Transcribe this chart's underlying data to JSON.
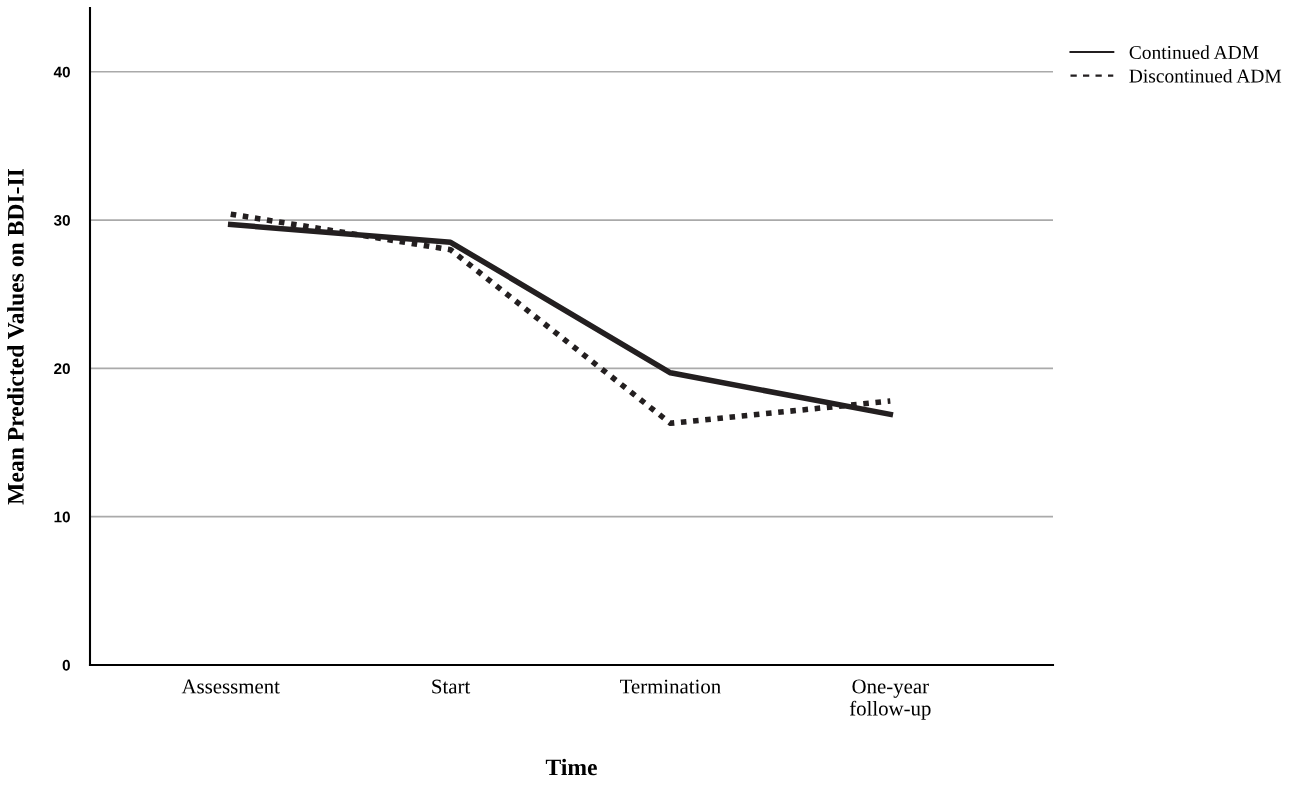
{
  "chart_data": {
    "type": "line",
    "xlabel": "Time",
    "ylabel": "Mean Predicted Values on BDI-II",
    "categories": [
      "Assessment",
      "Start",
      "Termination",
      "One-year\nfollow-up"
    ],
    "series": [
      {
        "name": "Continued ADM",
        "color": "#231f20",
        "line_style": "solid",
        "values": [
          29.7,
          28.5,
          19.7,
          16.9
        ]
      },
      {
        "name": "Discontinued ADM",
        "color": "#231f20",
        "line_style": "dotted",
        "values": [
          30.4,
          28.0,
          16.3,
          17.8
        ]
      }
    ],
    "ylim": [
      0,
      44.3
    ],
    "yticks": [
      0,
      10,
      20,
      30,
      40
    ],
    "grid": "y",
    "legend": "top right"
  }
}
